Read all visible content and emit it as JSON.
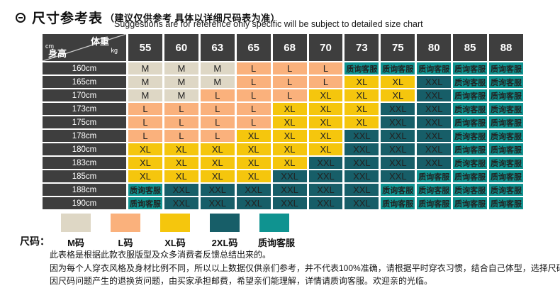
{
  "header": {
    "title": "尺寸参考表",
    "title_note": "（建议仅供参考  具体以详细尺码表为准）",
    "subtitle_en": "Suggestions are for reference only specific will be subject to detailed size chart"
  },
  "table": {
    "corner": {
      "weight": "体重",
      "kg": "kg",
      "cm": "cm",
      "height": "身高"
    }
  },
  "chart_data": {
    "type": "table",
    "title": "尺寸参考表",
    "col_axis": "体重 (kg)",
    "row_axis": "身高 (cm)",
    "columns": [
      "55",
      "60",
      "63",
      "65",
      "68",
      "70",
      "73",
      "75",
      "80",
      "85",
      "88"
    ],
    "rows": [
      {
        "height": "160cm",
        "cells": [
          "M",
          "M",
          "M",
          "L",
          "L",
          "L",
          "质询客服",
          "质询客服",
          "质询客服",
          "质询客服",
          "质询客服"
        ]
      },
      {
        "height": "165cm",
        "cells": [
          "M",
          "M",
          "M",
          "L",
          "L",
          "L",
          "XL",
          "XL",
          "XXL",
          "质询客服",
          "质询客服"
        ]
      },
      {
        "height": "170cm",
        "cells": [
          "M",
          "M",
          "L",
          "L",
          "L",
          "XL",
          "XL",
          "XL",
          "XXL",
          "质询客服",
          "质询客服"
        ]
      },
      {
        "height": "173cm",
        "cells": [
          "L",
          "L",
          "L",
          "L",
          "XL",
          "XL",
          "XL",
          "XXL",
          "XXL",
          "质询客服",
          "质询客服"
        ]
      },
      {
        "height": "175cm",
        "cells": [
          "L",
          "L",
          "L",
          "L",
          "XL",
          "XL",
          "XL",
          "XXL",
          "XXL",
          "质询客服",
          "质询客服"
        ]
      },
      {
        "height": "178cm",
        "cells": [
          "L",
          "L",
          "L",
          "XL",
          "XL",
          "XL",
          "XXL",
          "XXL",
          "XXL",
          "质询客服",
          "质询客服"
        ]
      },
      {
        "height": "180cm",
        "cells": [
          "XL",
          "XL",
          "XL",
          "XL",
          "XL",
          "XL",
          "XXL",
          "XXL",
          "XXL",
          "质询客服",
          "质询客服"
        ]
      },
      {
        "height": "183cm",
        "cells": [
          "XL",
          "XL",
          "XL",
          "XL",
          "XL",
          "XXL",
          "XXL",
          "XXL",
          "XXL",
          "质询客服",
          "质询客服"
        ]
      },
      {
        "height": "185cm",
        "cells": [
          "XL",
          "XL",
          "XL",
          "XL",
          "XXL",
          "XXL",
          "XXL",
          "XXL",
          "质询客服",
          "质询客服",
          "质询客服"
        ]
      },
      {
        "height": "188cm",
        "cells": [
          "质询客服",
          "XXL",
          "XXL",
          "XXL",
          "XXL",
          "XXL",
          "XXL",
          "质询客服",
          "质询客服",
          "质询客服",
          "质询客服"
        ]
      },
      {
        "height": "190cm",
        "cells": [
          "质询客服",
          "XXL",
          "XXL",
          "XXL",
          "XXL",
          "XXL",
          "XXL",
          "质询客服",
          "质询客服",
          "质询客服",
          "质询客服"
        ]
      }
    ]
  },
  "consult_label": "质询客服",
  "cell_colors": {
    "M": "#ded7c5",
    "L": "#fab17c",
    "XL": "#f5c60d",
    "XXL": "#175e68",
    "质询客服": "#0f9390"
  },
  "legend": {
    "label": "尺码：",
    "items": [
      {
        "name": "M码",
        "color": "#ded7c5"
      },
      {
        "name": "L码",
        "color": "#fab17c"
      },
      {
        "name": "XL码",
        "color": "#f5c60d"
      },
      {
        "name": "2XL码",
        "color": "#175e68"
      },
      {
        "name": "质询客服",
        "color": "#0f9390"
      }
    ]
  },
  "notes": [
    "此表格是根据此款衣服版型及众多消费者反馈总结出来的。",
    "因为每个人穿衣风格及身材比例不同，所以以上数据仅供亲们参考，并不代表100%准确，请根据平时穿衣习惯，结合自己体型，选择尺码。",
    "因尺码问题产生的退换货问题，由买家承担邮费，希望亲们能理解，详情请质询客服。欢迎亲的光临。"
  ],
  "colors": {
    "header_bg": "#3e3e3e",
    "header_text": "#ffffff",
    "cell_text": "#222222"
  }
}
